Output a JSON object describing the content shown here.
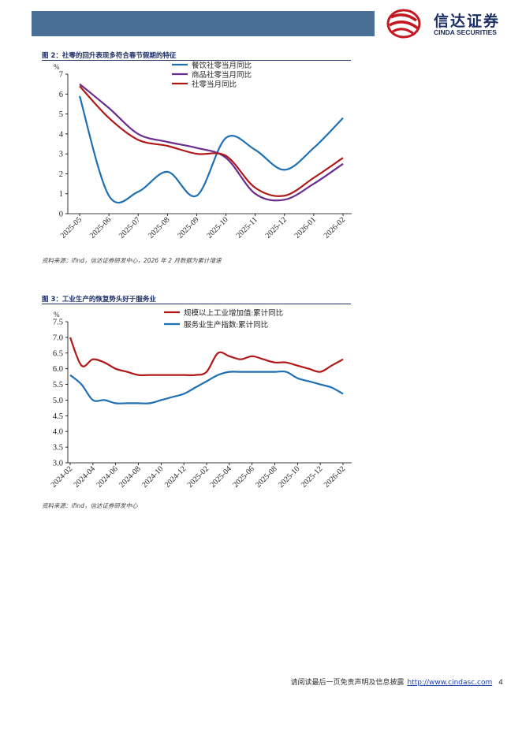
{
  "header": {
    "logo_cn": "信达证券",
    "logo_en": "CINDA SECURITIES",
    "brand_red": "#c4171f",
    "brand_navy": "#1c2f66",
    "bar_color": "#4a6f97"
  },
  "figures": [
    {
      "title": "图 2：社零的回升表现多符合春节假期的特征",
      "source": "资料来源：ifind，信达证券研发中心，2026 年 2 月数据为累计增速"
    },
    {
      "title": "图 3：工业生产的恢复势头好于服务业",
      "source": "资料来源：ifind，信达证券研发中心"
    }
  ],
  "chart_data": [
    {
      "type": "line",
      "unit": "%",
      "categories": [
        "2025-05",
        "2025-06",
        "2025-07",
        "2025-08",
        "2025-09",
        "2025-10",
        "2025-11",
        "2025-12",
        "2026-01",
        "2026-02"
      ],
      "xlabels": [
        "2025-05",
        "2025-06",
        "2025-07",
        "2025-08",
        "2025-09",
        "2025-10",
        "2025-11",
        "2025-12",
        "2026-01",
        "2026-02"
      ],
      "ylim": [
        0,
        7
      ],
      "yticks": [
        "0",
        "1",
        "2",
        "3",
        "4",
        "5",
        "6",
        "7"
      ],
      "legend_position": "top-center",
      "series": [
        {
          "name": "餐饮社零当月同比",
          "color": "#1f6fb3",
          "x": [
            0,
            1,
            2,
            3,
            4,
            5,
            6,
            7,
            8,
            9
          ],
          "values": [
            5.9,
            0.9,
            1.1,
            2.1,
            0.9,
            3.8,
            3.2,
            2.2,
            3.3,
            4.8
          ]
        },
        {
          "name": "商品社零当月同比",
          "color": "#6a2c8e",
          "x": [
            0,
            1,
            2,
            3,
            4,
            5,
            6,
            7,
            8,
            9
          ],
          "values": [
            6.5,
            5.3,
            4.0,
            3.6,
            3.3,
            2.8,
            1.0,
            0.7,
            1.5,
            2.5
          ]
        },
        {
          "name": "社零当月同比",
          "color": "#b01818",
          "x": [
            0,
            1,
            2,
            3,
            4,
            5,
            6,
            7,
            8,
            9
          ],
          "values": [
            6.4,
            4.8,
            3.7,
            3.4,
            3.0,
            2.9,
            1.3,
            0.9,
            1.8,
            2.8
          ]
        }
      ]
    },
    {
      "type": "line",
      "unit": "%",
      "categories": [
        "2024-02",
        "2024-03",
        "2024-04",
        "2024-05",
        "2024-06",
        "2024-07",
        "2024-08",
        "2024-09",
        "2024-10",
        "2024-11",
        "2024-12",
        "2025-01",
        "2025-02",
        "2025-03",
        "2025-04",
        "2025-05",
        "2025-06",
        "2025-07",
        "2025-08",
        "2025-09",
        "2025-10",
        "2025-11",
        "2025-12",
        "2026-01",
        "2026-02"
      ],
      "xlabels": [
        "2024-02",
        "2024-04",
        "2024-06",
        "2024-08",
        "2024-10",
        "2024-12",
        "2025-02",
        "2025-04",
        "2025-06",
        "2025-08",
        "2025-10",
        "2025-12",
        "2026-02"
      ],
      "ylim": [
        3.0,
        7.5
      ],
      "yticks": [
        "3.0",
        "3.5",
        "4.0",
        "4.5",
        "5.0",
        "5.5",
        "6.0",
        "6.5",
        "7.0",
        "7.5"
      ],
      "legend_position": "top-center",
      "series": [
        {
          "name": "规模以上工业增加值:累计同比",
          "color": "#b01818",
          "x": [
            0,
            1,
            2,
            3,
            4,
            5,
            6,
            7,
            8,
            9,
            10,
            11,
            12,
            13,
            14,
            15,
            16,
            17,
            18,
            19,
            20,
            21,
            22,
            23,
            24
          ],
          "values": [
            7.0,
            6.1,
            6.3,
            6.2,
            6.0,
            5.9,
            5.8,
            5.8,
            5.8,
            5.8,
            5.8,
            5.8,
            5.9,
            6.5,
            6.4,
            6.3,
            6.4,
            6.3,
            6.2,
            6.2,
            6.1,
            6.0,
            5.9,
            6.1,
            6.3
          ]
        },
        {
          "name": "服务业生产指数:累计同比",
          "color": "#1f6fb3",
          "x": [
            0,
            1,
            2,
            3,
            4,
            5,
            6,
            7,
            8,
            9,
            10,
            11,
            12,
            13,
            14,
            15,
            16,
            17,
            18,
            19,
            20,
            21,
            22,
            23,
            24
          ],
          "values": [
            5.8,
            5.5,
            5.0,
            5.0,
            4.9,
            4.9,
            4.9,
            4.9,
            5.0,
            5.1,
            5.2,
            5.4,
            5.6,
            5.8,
            5.9,
            5.9,
            5.9,
            5.9,
            5.9,
            5.9,
            5.7,
            5.6,
            5.5,
            5.4,
            5.2
          ]
        }
      ]
    }
  ],
  "footer": {
    "disclaimer": "请阅读最后一页免责声明及信息披露",
    "url": "http://www.cindasc.com",
    "page": "4"
  }
}
